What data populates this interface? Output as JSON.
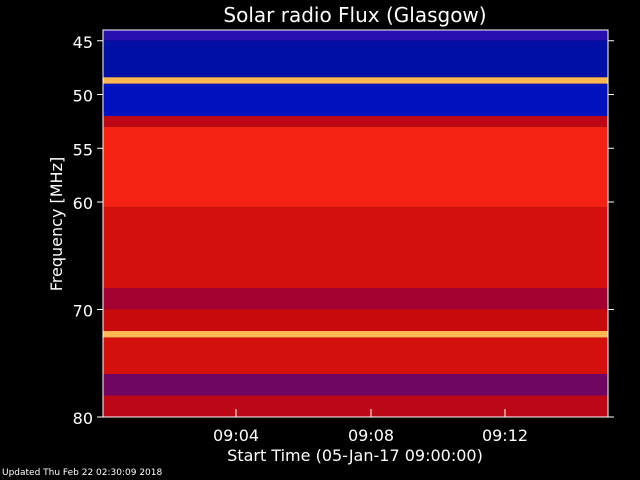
{
  "chart_data": {
    "type": "heatmap",
    "title": "Solar radio Flux (Glasgow)",
    "xlabel": "Start Time (05-Jan-17 09:00:00)",
    "ylabel": "Frequency [MHz]",
    "x_ticks": [
      "09:04",
      "09:08",
      "09:12"
    ],
    "y_ticks": [
      45,
      50,
      55,
      60,
      70,
      80
    ],
    "y_range_mhz": [
      44,
      80
    ],
    "colormap": "blue-red-yellow",
    "bands": [
      {
        "from_mhz": 44.0,
        "to_mhz": 45.0,
        "level": 0.15
      },
      {
        "from_mhz": 45.0,
        "to_mhz": 48.4,
        "level": 0.05
      },
      {
        "from_mhz": 48.4,
        "to_mhz": 49.0,
        "level": 0.95
      },
      {
        "from_mhz": 49.0,
        "to_mhz": 52.0,
        "level": 0.08
      },
      {
        "from_mhz": 52.0,
        "to_mhz": 53.0,
        "level": 0.45
      },
      {
        "from_mhz": 53.0,
        "to_mhz": 60.5,
        "level": 0.7
      },
      {
        "from_mhz": 60.5,
        "to_mhz": 68.0,
        "level": 0.55
      },
      {
        "from_mhz": 68.0,
        "to_mhz": 70.0,
        "level": 0.35
      },
      {
        "from_mhz": 70.0,
        "to_mhz": 72.0,
        "level": 0.5
      },
      {
        "from_mhz": 72.0,
        "to_mhz": 72.6,
        "level": 0.95
      },
      {
        "from_mhz": 72.6,
        "to_mhz": 76.0,
        "level": 0.55
      },
      {
        "from_mhz": 76.0,
        "to_mhz": 78.0,
        "level": 0.25
      },
      {
        "from_mhz": 78.0,
        "to_mhz": 80.0,
        "level": 0.45
      }
    ]
  },
  "footer": "Updated Thu Feb 22 02:30:09 2018",
  "colors": {
    "background": "#000000",
    "text": "#ffffff",
    "low": "#0014c8",
    "mid": "#e01010",
    "high": "#ffd060"
  }
}
